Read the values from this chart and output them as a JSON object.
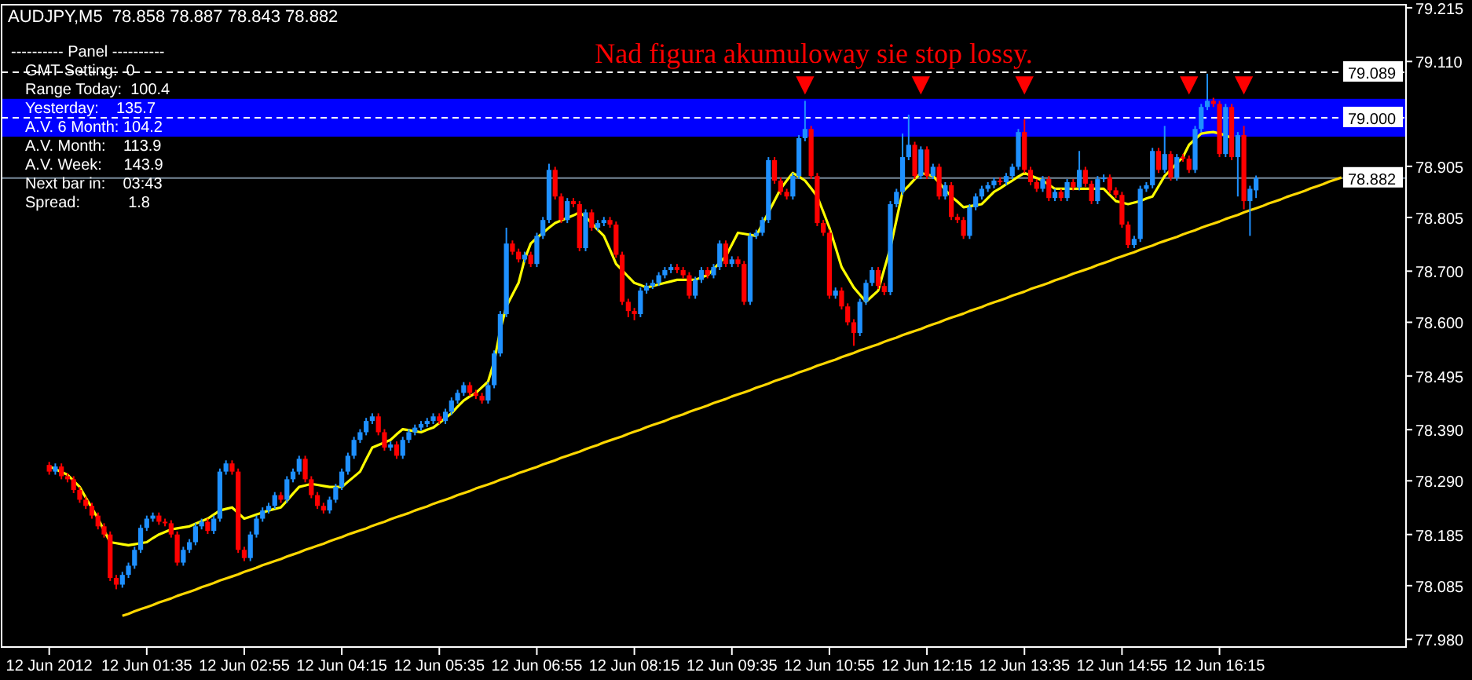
{
  "chart_data": {
    "type": "candlestick",
    "title": "AUDJPY,M5  78.858 78.887 78.843 78.882",
    "subtitle": "Nad figura akumuloway sie stop lossy.",
    "categories": [
      "12 Jun 2012",
      null,
      null,
      null,
      null,
      null,
      null,
      null,
      null,
      null,
      null,
      null,
      null,
      null,
      null,
      null,
      "12 Jun 01:35",
      null,
      null,
      null,
      null,
      null,
      null,
      null,
      null,
      null,
      null,
      null,
      null,
      null,
      null,
      null,
      "12 Jun 02:55",
      null,
      null,
      null,
      null,
      null,
      null,
      null,
      null,
      null,
      null,
      null,
      null,
      null,
      null,
      null,
      "12 Jun 04:15",
      null,
      null,
      null,
      null,
      null,
      null,
      null,
      null,
      null,
      null,
      null,
      null,
      null,
      null,
      null,
      "12 Jun 05:35",
      null,
      null,
      null,
      null,
      null,
      null,
      null,
      null,
      null,
      null,
      null,
      null,
      null,
      null,
      null,
      "12 Jun 06:55",
      null,
      null,
      null,
      null,
      null,
      null,
      null,
      null,
      null,
      null,
      null,
      null,
      null,
      null,
      null,
      "12 Jun 08:15",
      null,
      null,
      null,
      null,
      null,
      null,
      null,
      null,
      null,
      null,
      null,
      null,
      null,
      null,
      null,
      "12 Jun 09:35",
      null,
      null,
      null,
      null,
      null,
      null,
      null,
      null,
      null,
      null,
      null,
      null,
      null,
      null,
      null,
      "12 Jun 10:55",
      null,
      null,
      null,
      null,
      null,
      null,
      null,
      null,
      null,
      null,
      null,
      null,
      null,
      null,
      null,
      "12 Jun 12:15",
      null,
      null,
      null,
      null,
      null,
      null,
      null,
      null,
      null,
      null,
      null,
      null,
      null,
      null,
      null,
      "12 Jun 13:35",
      null,
      null,
      null,
      null,
      null,
      null,
      null,
      null,
      null,
      null,
      null,
      null,
      null,
      null,
      null,
      "12 Jun 14:55",
      null,
      null,
      null,
      null,
      null,
      null,
      null,
      null,
      null,
      null,
      null,
      null,
      null,
      null,
      null,
      "12 Jun 16:15",
      null,
      null,
      null,
      null,
      null,
      null,
      null,
      null,
      null,
      null,
      null,
      null,
      null,
      null,
      null,
      null,
      null,
      null,
      null,
      null,
      null,
      null,
      null,
      null,
      null,
      null,
      null,
      null,
      null,
      null
    ],
    "ohlc": [
      [
        78.321,
        78.327,
        78.302,
        78.308
      ],
      [
        78.308,
        78.324,
        78.302,
        78.318
      ],
      [
        78.318,
        78.324,
        78.293,
        78.299
      ],
      [
        78.299,
        78.305,
        78.287,
        78.293
      ],
      [
        78.293,
        78.299,
        78.266,
        78.272
      ],
      [
        78.272,
        78.278,
        78.247,
        78.253
      ],
      [
        78.253,
        78.259,
        78.235,
        78.241
      ],
      [
        78.241,
        78.247,
        78.216,
        78.222
      ],
      [
        78.222,
        78.228,
        78.195,
        78.201
      ],
      [
        78.201,
        78.207,
        78.179,
        78.185
      ],
      [
        78.185,
        78.191,
        78.094,
        78.1
      ],
      [
        78.1,
        78.106,
        78.078,
        78.087
      ],
      [
        78.087,
        78.112,
        78.081,
        78.106
      ],
      [
        78.106,
        78.13,
        78.1,
        78.124
      ],
      [
        78.124,
        78.161,
        78.118,
        78.155
      ],
      [
        78.155,
        78.204,
        78.149,
        78.198
      ],
      [
        78.198,
        78.222,
        78.192,
        78.216
      ],
      [
        78.216,
        78.228,
        78.21,
        78.222
      ],
      [
        78.222,
        78.228,
        78.204,
        78.21
      ],
      [
        78.21,
        78.216,
        78.201,
        78.207
      ],
      [
        78.207,
        78.213,
        78.179,
        78.185
      ],
      [
        78.185,
        78.191,
        78.124,
        78.13
      ],
      [
        78.13,
        78.161,
        78.124,
        78.155
      ],
      [
        78.155,
        78.176,
        78.149,
        78.17
      ],
      [
        78.17,
        78.207,
        78.164,
        78.201
      ],
      [
        78.201,
        78.216,
        78.195,
        78.21
      ],
      [
        78.21,
        78.216,
        78.186,
        78.192
      ],
      [
        78.192,
        78.222,
        78.186,
        78.216
      ],
      [
        78.216,
        78.314,
        78.21,
        78.308
      ],
      [
        78.308,
        78.33,
        78.302,
        78.324
      ],
      [
        78.324,
        78.33,
        78.302,
        78.308
      ],
      [
        78.308,
        78.314,
        78.149,
        78.155
      ],
      [
        78.155,
        78.161,
        78.133,
        78.139
      ],
      [
        78.139,
        78.191,
        78.133,
        78.185
      ],
      [
        78.185,
        78.222,
        78.179,
        78.216
      ],
      [
        78.216,
        78.238,
        78.21,
        78.232
      ],
      [
        78.232,
        78.247,
        78.226,
        78.241
      ],
      [
        78.241,
        78.268,
        78.235,
        78.262
      ],
      [
        78.262,
        78.268,
        78.247,
        78.253
      ],
      [
        78.253,
        78.299,
        78.247,
        78.293
      ],
      [
        78.293,
        78.314,
        78.287,
        78.308
      ],
      [
        78.308,
        78.339,
        78.302,
        78.333
      ],
      [
        78.333,
        78.339,
        78.287,
        78.293
      ],
      [
        78.293,
        78.299,
        78.256,
        78.262
      ],
      [
        78.262,
        78.268,
        78.235,
        78.241
      ],
      [
        78.241,
        78.247,
        78.226,
        78.232
      ],
      [
        78.232,
        78.259,
        78.226,
        78.253
      ],
      [
        78.253,
        78.284,
        78.247,
        78.278
      ],
      [
        78.278,
        78.314,
        78.272,
        78.308
      ],
      [
        78.308,
        78.345,
        78.302,
        78.339
      ],
      [
        78.339,
        78.376,
        78.333,
        78.37
      ],
      [
        78.37,
        78.391,
        78.364,
        78.385
      ],
      [
        78.385,
        78.413,
        78.379,
        78.407
      ],
      [
        78.407,
        78.422,
        78.401,
        78.416
      ],
      [
        78.416,
        78.422,
        78.379,
        78.385
      ],
      [
        78.385,
        78.391,
        78.349,
        78.355
      ],
      [
        78.355,
        78.367,
        78.349,
        78.361
      ],
      [
        78.361,
        78.367,
        78.333,
        78.339
      ],
      [
        78.339,
        78.376,
        78.333,
        78.37
      ],
      [
        78.37,
        78.391,
        78.364,
        78.385
      ],
      [
        78.385,
        78.4,
        78.379,
        78.394
      ],
      [
        78.394,
        78.407,
        78.388,
        78.401
      ],
      [
        78.401,
        78.413,
        78.395,
        78.407
      ],
      [
        78.407,
        78.422,
        78.401,
        78.416
      ],
      [
        78.416,
        78.422,
        78.401,
        78.407
      ],
      [
        78.407,
        78.431,
        78.401,
        78.425
      ],
      [
        78.425,
        78.453,
        78.419,
        78.447
      ],
      [
        78.447,
        78.468,
        78.441,
        78.462
      ],
      [
        78.462,
        78.483,
        78.456,
        78.477
      ],
      [
        78.477,
        78.483,
        78.456,
        78.462
      ],
      [
        78.462,
        78.468,
        78.45,
        78.456
      ],
      [
        78.456,
        78.462,
        78.441,
        78.447
      ],
      [
        78.447,
        78.483,
        78.441,
        78.477
      ],
      [
        78.477,
        78.545,
        78.471,
        78.539
      ],
      [
        78.539,
        78.622,
        78.533,
        78.616
      ],
      [
        78.616,
        78.785,
        78.61,
        78.754
      ],
      [
        78.754,
        78.76,
        78.732,
        78.738
      ],
      [
        78.738,
        78.744,
        78.717,
        78.723
      ],
      [
        78.723,
        78.738,
        78.717,
        78.732
      ],
      [
        78.732,
        78.738,
        78.708,
        78.714
      ],
      [
        78.714,
        78.775,
        78.708,
        78.769
      ],
      [
        78.769,
        78.806,
        78.763,
        78.8
      ],
      [
        78.8,
        78.91,
        78.794,
        78.898
      ],
      [
        78.898,
        78.904,
        78.84,
        78.846
      ],
      [
        78.846,
        78.852,
        78.794,
        78.8
      ],
      [
        78.8,
        78.843,
        78.794,
        78.837
      ],
      [
        78.837,
        78.843,
        78.825,
        78.831
      ],
      [
        78.831,
        78.837,
        78.739,
        78.745
      ],
      [
        78.745,
        78.821,
        78.739,
        78.815
      ],
      [
        78.815,
        78.821,
        78.779,
        78.785
      ],
      [
        78.785,
        78.8,
        78.779,
        78.794
      ],
      [
        78.794,
        78.806,
        78.788,
        78.8
      ],
      [
        78.8,
        78.806,
        78.785,
        78.791
      ],
      [
        78.791,
        78.797,
        78.726,
        78.732
      ],
      [
        78.732,
        78.738,
        78.634,
        78.64
      ],
      [
        78.64,
        78.646,
        78.61,
        78.622
      ],
      [
        78.622,
        78.628,
        78.604,
        78.616
      ],
      [
        78.616,
        78.668,
        78.61,
        78.662
      ],
      [
        78.662,
        78.677,
        78.656,
        78.671
      ],
      [
        78.671,
        78.683,
        78.665,
        78.677
      ],
      [
        78.677,
        78.698,
        78.671,
        78.692
      ],
      [
        78.692,
        78.708,
        78.686,
        78.702
      ],
      [
        78.702,
        78.714,
        78.696,
        78.708
      ],
      [
        78.708,
        78.714,
        78.696,
        78.702
      ],
      [
        78.702,
        78.708,
        78.686,
        78.692
      ],
      [
        78.692,
        78.698,
        78.646,
        78.652
      ],
      [
        78.652,
        78.689,
        78.646,
        78.683
      ],
      [
        78.683,
        78.708,
        78.677,
        78.702
      ],
      [
        78.702,
        78.708,
        78.686,
        78.692
      ],
      [
        78.692,
        78.714,
        78.686,
        78.708
      ],
      [
        78.708,
        78.76,
        78.702,
        78.754
      ],
      [
        78.754,
        78.76,
        78.708,
        78.714
      ],
      [
        78.714,
        78.729,
        78.708,
        78.723
      ],
      [
        78.723,
        78.729,
        78.708,
        78.714
      ],
      [
        78.714,
        78.72,
        78.634,
        78.64
      ],
      [
        78.64,
        78.775,
        78.634,
        78.769
      ],
      [
        78.769,
        78.781,
        78.763,
        78.775
      ],
      [
        78.775,
        78.806,
        78.769,
        78.8
      ],
      [
        78.8,
        78.923,
        78.794,
        78.917
      ],
      [
        78.917,
        78.923,
        78.871,
        78.877
      ],
      [
        78.877,
        78.883,
        78.849,
        78.855
      ],
      [
        78.855,
        78.861,
        78.84,
        78.846
      ],
      [
        78.846,
        78.892,
        78.84,
        78.886
      ],
      [
        78.886,
        78.966,
        78.88,
        78.96
      ],
      [
        78.96,
        79.033,
        78.954,
        78.978
      ],
      [
        78.978,
        78.984,
        78.88,
        78.886
      ],
      [
        78.886,
        78.892,
        78.788,
        78.794
      ],
      [
        78.794,
        78.8,
        78.769,
        78.775
      ],
      [
        78.775,
        78.781,
        78.646,
        78.652
      ],
      [
        78.652,
        78.668,
        78.646,
        78.662
      ],
      [
        78.662,
        78.668,
        78.625,
        78.631
      ],
      [
        78.631,
        78.637,
        78.594,
        78.6
      ],
      [
        78.6,
        78.606,
        78.554,
        78.579
      ],
      [
        78.579,
        78.646,
        78.573,
        78.64
      ],
      [
        78.64,
        78.683,
        78.634,
        78.677
      ],
      [
        78.677,
        78.708,
        78.671,
        78.702
      ],
      [
        78.702,
        78.708,
        78.665,
        78.671
      ],
      [
        78.671,
        78.677,
        78.653,
        78.659
      ],
      [
        78.659,
        78.837,
        78.653,
        78.831
      ],
      [
        78.831,
        78.861,
        78.825,
        78.855
      ],
      [
        78.855,
        78.969,
        78.849,
        78.923
      ],
      [
        78.923,
        79.006,
        78.917,
        78.947
      ],
      [
        78.947,
        78.953,
        78.88,
        78.886
      ],
      [
        78.886,
        78.944,
        78.88,
        78.938
      ],
      [
        78.938,
        78.944,
        78.88,
        78.886
      ],
      [
        78.886,
        78.91,
        78.88,
        78.904
      ],
      [
        78.904,
        78.91,
        78.84,
        78.846
      ],
      [
        78.846,
        78.874,
        78.84,
        78.868
      ],
      [
        78.868,
        78.874,
        78.8,
        78.806
      ],
      [
        78.806,
        78.812,
        78.794,
        78.8
      ],
      [
        78.8,
        78.806,
        78.763,
        78.769
      ],
      [
        78.769,
        78.831,
        78.763,
        78.825
      ],
      [
        78.825,
        78.852,
        78.819,
        78.846
      ],
      [
        78.846,
        78.867,
        78.84,
        78.861
      ],
      [
        78.861,
        78.874,
        78.855,
        78.868
      ],
      [
        78.868,
        78.883,
        78.862,
        78.877
      ],
      [
        78.877,
        78.883,
        78.868,
        78.874
      ],
      [
        78.874,
        78.892,
        78.868,
        78.886
      ],
      [
        78.886,
        78.91,
        78.88,
        78.904
      ],
      [
        78.904,
        78.978,
        78.898,
        78.972
      ],
      [
        78.972,
        78.997,
        78.892,
        78.898
      ],
      [
        78.898,
        78.904,
        78.868,
        78.874
      ],
      [
        78.874,
        78.88,
        78.855,
        78.861
      ],
      [
        78.861,
        78.886,
        78.855,
        78.88
      ],
      [
        78.88,
        78.886,
        78.837,
        78.843
      ],
      [
        78.843,
        78.861,
        78.837,
        78.855
      ],
      [
        78.855,
        78.861,
        78.837,
        78.843
      ],
      [
        78.843,
        78.88,
        78.837,
        78.874
      ],
      [
        78.874,
        78.88,
        78.858,
        78.864
      ],
      [
        78.864,
        78.935,
        78.858,
        78.898
      ],
      [
        78.898,
        78.904,
        78.865,
        78.871
      ],
      [
        78.871,
        78.877,
        78.831,
        78.837
      ],
      [
        78.837,
        78.886,
        78.831,
        78.88
      ],
      [
        78.88,
        78.889,
        78.874,
        78.883
      ],
      [
        78.883,
        78.889,
        78.852,
        78.858
      ],
      [
        78.858,
        78.864,
        78.843,
        78.849
      ],
      [
        78.849,
        78.855,
        78.785,
        78.791
      ],
      [
        78.791,
        78.797,
        78.745,
        78.751
      ],
      [
        78.751,
        78.769,
        78.745,
        78.763
      ],
      [
        78.763,
        78.867,
        78.757,
        78.861
      ],
      [
        78.861,
        78.874,
        78.855,
        78.868
      ],
      [
        78.868,
        78.941,
        78.862,
        78.935
      ],
      [
        78.935,
        78.941,
        78.892,
        78.898
      ],
      [
        78.898,
        78.984,
        78.892,
        78.929
      ],
      [
        78.929,
        78.935,
        78.877,
        78.883
      ],
      [
        78.883,
        78.929,
        78.877,
        78.923
      ],
      [
        78.923,
        78.929,
        78.914,
        78.92
      ],
      [
        78.92,
        78.926,
        78.892,
        78.898
      ],
      [
        78.898,
        78.984,
        78.892,
        78.978
      ],
      [
        78.978,
        79.027,
        78.972,
        79.021
      ],
      [
        79.021,
        79.086,
        79.015,
        79.033
      ],
      [
        79.033,
        79.039,
        79.021,
        79.027
      ],
      [
        79.027,
        79.033,
        78.923,
        78.929
      ],
      [
        78.929,
        79.027,
        78.923,
        79.021
      ],
      [
        79.021,
        79.027,
        78.917,
        78.923
      ],
      [
        78.923,
        78.972,
        78.846,
        78.966
      ],
      [
        78.966,
        78.984,
        78.821,
        78.837
      ],
      [
        78.837,
        78.867,
        78.769,
        78.861
      ],
      [
        78.858,
        78.887,
        78.843,
        78.882
      ],
      null,
      null,
      null,
      null,
      null,
      null,
      null,
      null,
      null,
      null,
      null,
      null,
      null,
      null,
      null,
      null,
      null,
      null,
      null,
      null,
      null,
      null,
      null,
      null
    ],
    "colors": [
      "#ff0000",
      "#1e90ff",
      "#ff0000",
      "#ff0000",
      "#ff0000",
      "#ff0000",
      "#ff0000",
      "#ff0000",
      "#ff0000",
      "#ff0000",
      "#ff0000",
      "#ff0000",
      "#1e90ff",
      "#1e90ff",
      "#1e90ff",
      "#1e90ff",
      "#1e90ff",
      "#1e90ff",
      "#ff0000",
      "#ff0000",
      "#ff0000",
      "#ff0000",
      "#1e90ff",
      "#1e90ff",
      "#1e90ff",
      "#1e90ff",
      "#ff0000",
      "#1e90ff",
      "#1e90ff",
      "#1e90ff",
      "#ff0000",
      "#ff0000",
      "#ff0000",
      "#1e90ff",
      "#1e90ff",
      "#1e90ff",
      "#1e90ff",
      "#1e90ff",
      "#ff0000",
      "#1e90ff",
      "#1e90ff",
      "#1e90ff",
      "#ff0000",
      "#ff0000",
      "#ff0000",
      "#ff0000",
      "#1e90ff",
      "#1e90ff",
      "#1e90ff",
      "#1e90ff",
      "#1e90ff",
      "#1e90ff",
      "#1e90ff",
      "#1e90ff",
      "#ff0000",
      "#ff0000",
      "#1e90ff",
      "#ff0000",
      "#1e90ff",
      "#1e90ff",
      "#1e90ff",
      "#1e90ff",
      "#1e90ff",
      "#1e90ff",
      "#ff0000",
      "#1e90ff",
      "#1e90ff",
      "#1e90ff",
      "#1e90ff",
      "#ff0000",
      "#ff0000",
      "#ff0000",
      "#1e90ff",
      "#1e90ff",
      "#1e90ff",
      "#1e90ff",
      "#ff0000",
      "#ff0000",
      "#1e90ff",
      "#ff0000",
      "#1e90ff",
      "#1e90ff",
      "#1e90ff",
      "#ff0000",
      "#ff0000",
      "#1e90ff",
      "#ff0000",
      "#ff0000",
      "#1e90ff",
      "#ff0000",
      "#1e90ff",
      "#1e90ff",
      "#ff0000",
      "#ff0000",
      "#ff0000",
      "#ff0000",
      "#ff0000",
      "#1e90ff",
      "#1e90ff",
      "#1e90ff",
      "#1e90ff",
      "#1e90ff",
      "#1e90ff",
      "#ff0000",
      "#ff0000",
      "#ff0000",
      "#1e90ff",
      "#1e90ff",
      "#ff0000",
      "#1e90ff",
      "#1e90ff",
      "#ff0000",
      "#1e90ff",
      "#ff0000",
      "#ff0000",
      "#1e90ff",
      "#1e90ff",
      "#1e90ff",
      "#1e90ff",
      "#ff0000",
      "#ff0000",
      "#ff0000",
      "#1e90ff",
      "#1e90ff",
      "#1e90ff",
      "#ff0000",
      "#ff0000",
      "#ff0000",
      "#ff0000",
      "#1e90ff",
      "#ff0000",
      "#ff0000",
      "#ff0000",
      "#1e90ff",
      "#1e90ff",
      "#1e90ff",
      "#ff0000",
      "#ff0000",
      "#1e90ff",
      "#1e90ff",
      "#1e90ff",
      "#1e90ff",
      "#ff0000",
      "#1e90ff",
      "#ff0000",
      "#1e90ff",
      "#ff0000",
      "#1e90ff",
      "#ff0000",
      "#ff0000",
      "#ff0000",
      "#1e90ff",
      "#1e90ff",
      "#1e90ff",
      "#1e90ff",
      "#1e90ff",
      "#ff0000",
      "#1e90ff",
      "#1e90ff",
      "#1e90ff",
      "#ff0000",
      "#ff0000",
      "#ff0000",
      "#1e90ff",
      "#ff0000",
      "#1e90ff",
      "#ff0000",
      "#1e90ff",
      "#ff0000",
      "#1e90ff",
      "#ff0000",
      "#ff0000",
      "#1e90ff",
      "#1e90ff",
      "#ff0000",
      "#ff0000",
      "#ff0000",
      "#ff0000",
      "#1e90ff",
      "#1e90ff",
      "#1e90ff",
      "#1e90ff",
      "#ff0000",
      "#1e90ff",
      "#ff0000",
      "#1e90ff",
      "#ff0000",
      "#ff0000",
      "#1e90ff",
      "#1e90ff",
      "#1e90ff",
      "#ff0000",
      "#ff0000",
      "#1e90ff",
      "#ff0000",
      "#1e90ff",
      "#ff0000",
      "#1e90ff",
      "#1e90ff",
      null,
      null,
      null,
      null,
      null,
      null,
      null,
      null,
      null,
      null,
      null,
      null,
      null,
      null,
      null,
      null,
      null,
      null,
      null,
      null,
      null,
      null,
      null,
      null
    ],
    "series": [
      {
        "type": "line",
        "color": "#ffff00",
        "values": [
          78.318,
          78.313,
          78.307,
          78.302,
          78.29,
          78.278,
          78.257,
          78.237,
          78.216,
          78.193,
          78.17,
          78.168,
          78.166,
          78.164,
          78.166,
          78.168,
          78.17,
          78.178,
          78.185,
          78.19,
          78.195,
          78.197,
          78.199,
          78.201,
          78.206,
          78.211,
          78.216,
          78.224,
          78.232,
          78.235,
          78.238,
          78.227,
          78.216,
          78.22,
          78.224,
          78.228,
          78.232,
          78.235,
          78.238,
          78.251,
          78.265,
          78.278,
          78.281,
          78.284,
          78.282,
          78.28,
          78.278,
          78.278,
          78.278,
          78.288,
          78.298,
          78.308,
          78.332,
          78.355,
          78.36,
          78.365,
          78.37,
          78.381,
          78.391,
          78.389,
          78.387,
          78.385,
          78.39,
          78.394,
          78.403,
          78.413,
          78.422,
          78.435,
          78.447,
          78.455,
          78.462,
          78.473,
          78.484,
          78.523,
          78.585,
          78.631,
          78.654,
          78.677,
          78.723,
          78.754,
          78.765,
          78.775,
          78.785,
          78.794,
          78.799,
          78.804,
          78.809,
          78.815,
          78.806,
          78.794,
          78.781,
          78.769,
          78.742,
          78.714,
          78.702,
          78.689,
          78.677,
          78.673,
          78.668,
          78.671,
          78.674,
          78.677,
          78.68,
          78.683,
          78.683,
          78.683,
          78.683,
          78.688,
          78.692,
          78.704,
          78.717,
          78.729,
          78.752,
          78.775,
          78.773,
          78.771,
          78.769,
          78.792,
          78.815,
          78.838,
          78.861,
          78.877,
          78.892,
          78.885,
          78.877,
          78.862,
          78.846,
          78.816,
          78.785,
          78.747,
          78.708,
          78.688,
          78.668,
          78.654,
          78.64,
          78.651,
          78.662,
          78.704,
          78.745,
          78.8,
          78.855,
          78.867,
          78.88,
          78.892,
          78.889,
          78.886,
          78.873,
          78.859,
          78.846,
          78.836,
          78.825,
          78.827,
          78.829,
          78.831,
          78.843,
          78.855,
          78.862,
          78.87,
          78.877,
          78.885,
          78.892,
          78.887,
          78.882,
          78.877,
          78.869,
          78.861,
          78.861,
          78.861,
          78.861,
          78.861,
          78.861,
          78.861,
          78.861,
          78.861,
          78.849,
          78.837,
          78.834,
          78.831,
          78.834,
          78.837,
          78.842,
          78.846,
          78.866,
          78.886,
          78.898,
          78.911,
          78.923,
          78.947,
          78.958,
          78.969,
          78.971,
          78.972,
          78.969,
          78.966,
          78.96,
          null,
          null,
          null,
          null,
          null,
          null,
          null,
          null,
          null,
          null,
          null,
          null,
          null,
          null,
          null,
          null,
          null,
          null,
          null,
          null,
          null,
          null,
          null,
          null,
          null,
          null,
          null,
          null
        ]
      },
      {
        "type": "line",
        "color": "#ffd700",
        "values": [
          null,
          null,
          null,
          null,
          null,
          null,
          null,
          null,
          null,
          null,
          null,
          null,
          78.026,
          78.03,
          78.035,
          78.039,
          78.043,
          78.047,
          78.052,
          78.056,
          78.06,
          78.065,
          78.069,
          78.073,
          78.077,
          78.082,
          78.086,
          78.09,
          78.095,
          78.099,
          78.103,
          78.107,
          78.112,
          78.116,
          78.12,
          78.125,
          78.129,
          78.133,
          78.137,
          78.142,
          78.146,
          78.15,
          78.155,
          78.159,
          78.163,
          78.167,
          78.172,
          78.176,
          78.18,
          78.185,
          78.189,
          78.193,
          78.197,
          78.202,
          78.206,
          78.21,
          78.215,
          78.219,
          78.223,
          78.227,
          78.232,
          78.236,
          78.24,
          78.245,
          78.249,
          78.253,
          78.257,
          78.262,
          78.266,
          78.27,
          78.275,
          78.279,
          78.283,
          78.287,
          78.292,
          78.296,
          78.3,
          78.305,
          78.309,
          78.313,
          78.317,
          78.322,
          78.326,
          78.33,
          78.335,
          78.339,
          78.343,
          78.347,
          78.352,
          78.356,
          78.36,
          78.365,
          78.369,
          78.373,
          78.377,
          78.382,
          78.386,
          78.39,
          78.395,
          78.399,
          78.403,
          78.407,
          78.412,
          78.416,
          78.42,
          78.425,
          78.429,
          78.433,
          78.437,
          78.442,
          78.446,
          78.45,
          78.455,
          78.459,
          78.463,
          78.467,
          78.472,
          78.476,
          78.48,
          78.485,
          78.489,
          78.493,
          78.497,
          78.502,
          78.506,
          78.51,
          78.515,
          78.519,
          78.523,
          78.527,
          78.532,
          78.536,
          78.54,
          78.545,
          78.549,
          78.553,
          78.557,
          78.562,
          78.566,
          78.57,
          78.575,
          78.579,
          78.583,
          78.587,
          78.592,
          78.596,
          78.6,
          78.605,
          78.609,
          78.613,
          78.617,
          78.622,
          78.626,
          78.63,
          78.635,
          78.639,
          78.643,
          78.647,
          78.652,
          78.656,
          78.66,
          78.665,
          78.669,
          78.673,
          78.677,
          78.682,
          78.686,
          78.69,
          78.695,
          78.699,
          78.703,
          78.707,
          78.712,
          78.716,
          78.72,
          78.725,
          78.729,
          78.733,
          78.737,
          78.742,
          78.746,
          78.75,
          78.755,
          78.759,
          78.763,
          78.767,
          78.772,
          78.776,
          78.78,
          78.785,
          78.789,
          78.793,
          78.797,
          78.802,
          78.806,
          78.81,
          78.815,
          78.819,
          78.823,
          78.827,
          78.832,
          78.836,
          78.84,
          78.845,
          78.849,
          78.853,
          78.857,
          78.862,
          78.866,
          78.87,
          78.875,
          78.879,
          78.883,
          null,
          null,
          null,
          null,
          null,
          null,
          null,
          null,
          null,
          null
        ]
      },
      {
        "type": "scatter",
        "marker": "triangle",
        "color": "#ff0000",
        "values": [
          null,
          null,
          null,
          null,
          null,
          null,
          null,
          null,
          null,
          null,
          null,
          null,
          null,
          null,
          null,
          null,
          null,
          null,
          null,
          null,
          null,
          null,
          null,
          null,
          null,
          null,
          null,
          null,
          null,
          null,
          null,
          null,
          null,
          null,
          null,
          null,
          null,
          null,
          null,
          null,
          null,
          null,
          null,
          null,
          null,
          null,
          null,
          null,
          null,
          null,
          null,
          null,
          null,
          null,
          null,
          null,
          null,
          null,
          null,
          null,
          null,
          null,
          null,
          null,
          null,
          null,
          null,
          null,
          null,
          null,
          null,
          null,
          null,
          null,
          null,
          null,
          null,
          null,
          null,
          null,
          null,
          null,
          null,
          null,
          null,
          null,
          null,
          null,
          null,
          null,
          null,
          null,
          null,
          null,
          null,
          null,
          null,
          null,
          null,
          null,
          null,
          null,
          null,
          null,
          null,
          null,
          null,
          null,
          null,
          null,
          null,
          null,
          null,
          null,
          null,
          null,
          null,
          null,
          null,
          null,
          null,
          null,
          null,
          null,
          79.064,
          null,
          null,
          null,
          null,
          null,
          null,
          null,
          null,
          null,
          null,
          null,
          null,
          null,
          null,
          null,
          null,
          null,
          null,
          79.064,
          null,
          null,
          null,
          null,
          null,
          null,
          null,
          null,
          null,
          null,
          null,
          null,
          null,
          null,
          null,
          null,
          79.064,
          null,
          null,
          null,
          null,
          null,
          null,
          null,
          null,
          null,
          null,
          null,
          null,
          null,
          null,
          null,
          null,
          null,
          null,
          null,
          null,
          null,
          null,
          null,
          null,
          null,
          null,
          79.064,
          null,
          null,
          null,
          null,
          null,
          null,
          null,
          null,
          79.064,
          null,
          null,
          null,
          null,
          null,
          null,
          null,
          null,
          null,
          null,
          null,
          null,
          null,
          null,
          null,
          null,
          null,
          null,
          null,
          null,
          null,
          null,
          null,
          null,
          null,
          null
        ]
      }
    ],
    "ylim": [
      77.965,
      79.221
    ],
    "yticks": [
      {
        "value": 79.215,
        "label": "79.215"
      },
      {
        "value": 79.11,
        "label": "79.110"
      },
      {
        "value": 78.905,
        "label": "78.905"
      },
      {
        "value": 78.805,
        "label": "78.805"
      },
      {
        "value": 78.7,
        "label": "78.700"
      },
      {
        "value": 78.6,
        "label": "78.600"
      },
      {
        "value": 78.495,
        "label": "78.495"
      },
      {
        "value": 78.39,
        "label": "78.390"
      },
      {
        "value": 78.29,
        "label": "78.290"
      },
      {
        "value": 78.185,
        "label": "78.185"
      },
      {
        "value": 78.085,
        "label": "78.085"
      },
      {
        "value": 77.98,
        "label": "77.980"
      }
    ],
    "bands": [
      {
        "axis": "y",
        "from": 78.963,
        "to": 79.037,
        "color": "#0000ff"
      }
    ],
    "ref_lines": [
      {
        "axis": "y",
        "value": 79.089,
        "label": "79.089",
        "color": "#ffffff",
        "line_style": "dashed"
      },
      {
        "axis": "y",
        "value": 79.0,
        "label": "79.000",
        "color": "#ffffff",
        "line_style": "dashed"
      },
      {
        "axis": "y",
        "value": 78.882,
        "label": "78.882",
        "color": "#778899",
        "line_style": "solid"
      }
    ],
    "annotations": [
      "---------- Panel ----------",
      "GMT Setting:  0",
      "Range Today:  100.4",
      "Yesterday:    135.7",
      "A.V. 6 Month: 104.2",
      "A.V. Month:    113.9",
      "A.V. Week:     143.9",
      "Next bar in:    03:43",
      "Spread:           1.8"
    ]
  }
}
